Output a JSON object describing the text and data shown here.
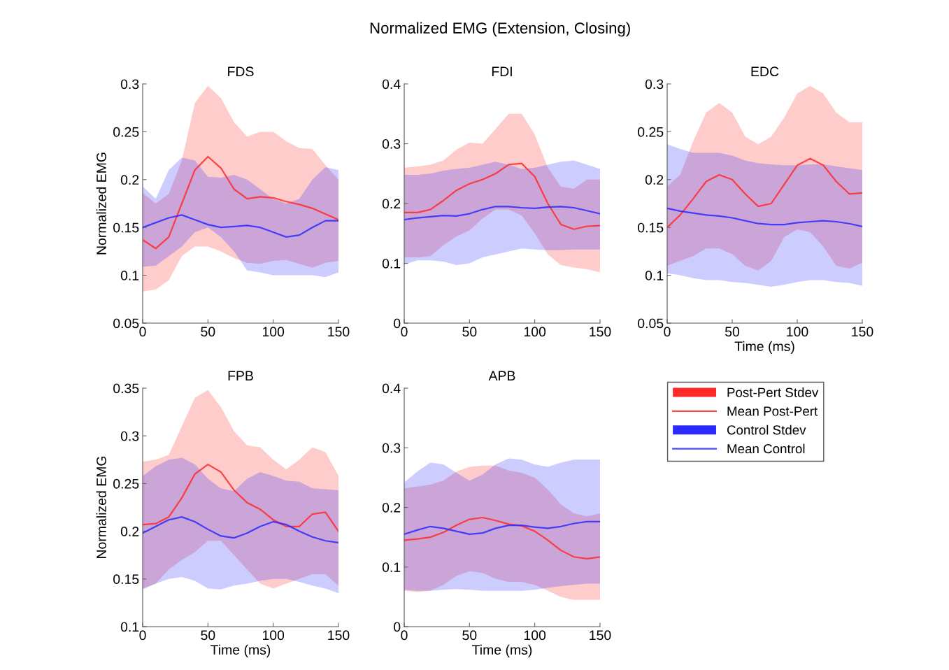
{
  "chart_data": [
    {
      "type": "line",
      "title": "FDS",
      "ylabel": "Normalized EMG",
      "annotations": [
        "Normalized EMG (Extension, Closing)"
      ],
      "x": [
        0,
        10,
        20,
        30,
        40,
        50,
        60,
        70,
        80,
        90,
        100,
        110,
        120,
        130,
        140,
        150
      ],
      "xlim": [
        0,
        150
      ],
      "xticks": [
        0,
        50,
        100,
        150
      ],
      "ylim": [
        0.05,
        0.3
      ],
      "yticks": [
        0.05,
        0.1,
        0.15,
        0.2,
        0.25,
        0.3
      ],
      "grid": false,
      "legend": false,
      "series": [
        {
          "color": "#ff2a2a",
          "values": [
            0.137,
            0.128,
            0.14,
            0.175,
            0.21,
            0.224,
            0.212,
            0.19,
            0.18,
            0.182,
            0.181,
            0.177,
            0.174,
            0.17,
            0.164,
            0.158
          ],
          "lower": [
            0.083,
            0.085,
            0.095,
            0.12,
            0.13,
            0.13,
            0.125,
            0.118,
            0.113,
            0.112,
            0.115,
            0.116,
            0.112,
            0.108,
            0.113,
            0.115
          ],
          "upper": [
            0.186,
            0.175,
            0.185,
            0.22,
            0.28,
            0.298,
            0.285,
            0.26,
            0.245,
            0.25,
            0.25,
            0.24,
            0.233,
            0.232,
            0.215,
            0.2
          ]
        },
        {
          "color": "#2a2aff",
          "values": [
            0.15,
            0.155,
            0.16,
            0.163,
            0.158,
            0.153,
            0.15,
            0.151,
            0.152,
            0.15,
            0.145,
            0.14,
            0.142,
            0.15,
            0.157,
            0.157
          ],
          "lower": [
            0.109,
            0.11,
            0.12,
            0.13,
            0.145,
            0.15,
            0.14,
            0.125,
            0.105,
            0.103,
            0.1,
            0.1,
            0.1,
            0.1,
            0.098,
            0.103
          ],
          "upper": [
            0.193,
            0.18,
            0.21,
            0.223,
            0.22,
            0.203,
            0.202,
            0.205,
            0.2,
            0.19,
            0.18,
            0.175,
            0.18,
            0.2,
            0.213,
            0.21
          ]
        }
      ]
    },
    {
      "type": "line",
      "title": "FDI",
      "x": [
        0,
        10,
        20,
        30,
        40,
        50,
        60,
        70,
        80,
        90,
        100,
        110,
        120,
        130,
        140,
        150
      ],
      "xlim": [
        0,
        150
      ],
      "xticks": [
        0,
        50,
        100,
        150
      ],
      "ylim": [
        0,
        0.4
      ],
      "yticks": [
        0,
        0.1,
        0.2,
        0.3,
        0.4
      ],
      "grid": false,
      "legend": false,
      "series": [
        {
          "color": "#ff2a2a",
          "values": [
            0.185,
            0.185,
            0.19,
            0.205,
            0.222,
            0.233,
            0.24,
            0.25,
            0.265,
            0.267,
            0.245,
            0.2,
            0.165,
            0.157,
            0.162,
            0.163
          ],
          "lower": [
            0.11,
            0.11,
            0.112,
            0.13,
            0.145,
            0.155,
            0.175,
            0.19,
            0.19,
            0.18,
            0.15,
            0.115,
            0.097,
            0.093,
            0.09,
            0.085
          ],
          "upper": [
            0.26,
            0.262,
            0.265,
            0.272,
            0.29,
            0.302,
            0.3,
            0.325,
            0.35,
            0.35,
            0.315,
            0.26,
            0.228,
            0.225,
            0.24,
            0.24
          ]
        },
        {
          "color": "#2a2aff",
          "values": [
            0.173,
            0.176,
            0.178,
            0.18,
            0.179,
            0.183,
            0.19,
            0.195,
            0.195,
            0.193,
            0.192,
            0.194,
            0.195,
            0.193,
            0.188,
            0.183
          ],
          "lower": [
            0.098,
            0.105,
            0.105,
            0.103,
            0.097,
            0.1,
            0.11,
            0.115,
            0.12,
            0.125,
            0.123,
            0.122,
            0.122,
            0.123,
            0.123,
            0.123
          ],
          "upper": [
            0.248,
            0.248,
            0.25,
            0.255,
            0.258,
            0.26,
            0.265,
            0.27,
            0.265,
            0.258,
            0.26,
            0.265,
            0.27,
            0.272,
            0.265,
            0.258
          ]
        }
      ]
    },
    {
      "type": "line",
      "title": "EDC",
      "xlabel": "Time (ms)",
      "x": [
        0,
        10,
        20,
        30,
        40,
        50,
        60,
        70,
        80,
        90,
        100,
        110,
        120,
        130,
        140,
        150
      ],
      "xlim": [
        0,
        150
      ],
      "xticks": [
        0,
        50,
        100,
        150
      ],
      "ylim": [
        0.05,
        0.3
      ],
      "yticks": [
        0.05,
        0.1,
        0.15,
        0.2,
        0.25,
        0.3
      ],
      "grid": false,
      "legend": false,
      "series": [
        {
          "color": "#ff2a2a",
          "values": [
            0.15,
            0.163,
            0.18,
            0.198,
            0.205,
            0.2,
            0.185,
            0.172,
            0.175,
            0.195,
            0.215,
            0.222,
            0.215,
            0.198,
            0.185,
            0.186
          ],
          "lower": [
            0.11,
            0.115,
            0.12,
            0.128,
            0.128,
            0.122,
            0.11,
            0.105,
            0.115,
            0.14,
            0.148,
            0.145,
            0.13,
            0.11,
            0.107,
            0.113
          ],
          "upper": [
            0.193,
            0.205,
            0.24,
            0.27,
            0.28,
            0.27,
            0.245,
            0.237,
            0.245,
            0.265,
            0.29,
            0.298,
            0.29,
            0.27,
            0.26,
            0.26
          ]
        },
        {
          "color": "#2a2aff",
          "values": [
            0.17,
            0.167,
            0.165,
            0.163,
            0.162,
            0.16,
            0.157,
            0.154,
            0.153,
            0.153,
            0.155,
            0.156,
            0.157,
            0.156,
            0.154,
            0.151
          ],
          "lower": [
            0.102,
            0.1,
            0.097,
            0.095,
            0.095,
            0.093,
            0.092,
            0.09,
            0.088,
            0.09,
            0.093,
            0.095,
            0.095,
            0.093,
            0.092,
            0.089
          ],
          "upper": [
            0.237,
            0.232,
            0.228,
            0.228,
            0.228,
            0.225,
            0.22,
            0.217,
            0.216,
            0.215,
            0.215,
            0.216,
            0.216,
            0.214,
            0.212,
            0.21
          ]
        }
      ]
    },
    {
      "type": "line",
      "title": "FPB",
      "xlabel": "Time (ms)",
      "ylabel": "Normalized EMG",
      "x": [
        0,
        10,
        20,
        30,
        40,
        50,
        60,
        70,
        80,
        90,
        100,
        110,
        120,
        130,
        140,
        150
      ],
      "xlim": [
        0,
        150
      ],
      "xticks": [
        0,
        50,
        100,
        150
      ],
      "ylim": [
        0.1,
        0.35
      ],
      "yticks": [
        0.1,
        0.15,
        0.2,
        0.25,
        0.3,
        0.35
      ],
      "grid": false,
      "legend": false,
      "series": [
        {
          "color": "#ff2a2a",
          "values": [
            0.207,
            0.208,
            0.215,
            0.235,
            0.26,
            0.27,
            0.262,
            0.243,
            0.23,
            0.223,
            0.212,
            0.205,
            0.205,
            0.218,
            0.22,
            0.2
          ],
          "lower": [
            0.14,
            0.145,
            0.16,
            0.17,
            0.178,
            0.19,
            0.19,
            0.175,
            0.16,
            0.145,
            0.14,
            0.145,
            0.15,
            0.155,
            0.155,
            0.143
          ],
          "upper": [
            0.273,
            0.275,
            0.28,
            0.31,
            0.34,
            0.348,
            0.33,
            0.305,
            0.29,
            0.288,
            0.275,
            0.265,
            0.275,
            0.288,
            0.283,
            0.258
          ]
        },
        {
          "color": "#2a2aff",
          "values": [
            0.198,
            0.205,
            0.212,
            0.215,
            0.21,
            0.202,
            0.195,
            0.193,
            0.198,
            0.205,
            0.21,
            0.207,
            0.2,
            0.194,
            0.19,
            0.188
          ],
          "lower": [
            0.139,
            0.145,
            0.15,
            0.152,
            0.148,
            0.14,
            0.139,
            0.143,
            0.145,
            0.148,
            0.15,
            0.15,
            0.147,
            0.143,
            0.14,
            0.135
          ],
          "upper": [
            0.258,
            0.268,
            0.275,
            0.277,
            0.27,
            0.255,
            0.245,
            0.242,
            0.255,
            0.262,
            0.258,
            0.253,
            0.252,
            0.245,
            0.244,
            0.243
          ]
        }
      ]
    },
    {
      "type": "line",
      "title": "APB",
      "xlabel": "Time (ms)",
      "annotations": [
        "Post-Pert Stdev",
        "Control Stdev"
      ],
      "x": [
        0,
        10,
        20,
        30,
        40,
        50,
        60,
        70,
        80,
        90,
        100,
        110,
        120,
        130,
        140,
        150
      ],
      "xlim": [
        0,
        150
      ],
      "xticks": [
        0,
        50,
        100,
        150
      ],
      "ylim": [
        0,
        0.4
      ],
      "yticks": [
        0,
        0.1,
        0.2,
        0.3,
        0.4
      ],
      "grid": false,
      "legend": "right",
      "series": [
        {
          "name": "Mean Post-Pert",
          "color": "#ff2a2a",
          "values": [
            0.145,
            0.147,
            0.15,
            0.158,
            0.17,
            0.18,
            0.183,
            0.178,
            0.172,
            0.169,
            0.16,
            0.145,
            0.128,
            0.117,
            0.114,
            0.117
          ],
          "lower": [
            0.06,
            0.058,
            0.06,
            0.07,
            0.085,
            0.093,
            0.09,
            0.08,
            0.075,
            0.075,
            0.07,
            0.06,
            0.05,
            0.045,
            0.045,
            0.045
          ],
          "upper": [
            0.232,
            0.235,
            0.238,
            0.245,
            0.26,
            0.268,
            0.27,
            0.27,
            0.262,
            0.258,
            0.25,
            0.23,
            0.205,
            0.19,
            0.185,
            0.19
          ]
        },
        {
          "name": "Mean Control",
          "color": "#2a2aff",
          "values": [
            0.155,
            0.162,
            0.168,
            0.165,
            0.16,
            0.155,
            0.157,
            0.165,
            0.17,
            0.17,
            0.167,
            0.165,
            0.168,
            0.173,
            0.176,
            0.176
          ],
          "lower": [
            0.062,
            0.06,
            0.06,
            0.062,
            0.063,
            0.062,
            0.06,
            0.06,
            0.06,
            0.06,
            0.062,
            0.065,
            0.068,
            0.07,
            0.072,
            0.072
          ],
          "upper": [
            0.242,
            0.26,
            0.275,
            0.272,
            0.258,
            0.245,
            0.255,
            0.272,
            0.282,
            0.28,
            0.272,
            0.268,
            0.275,
            0.28,
            0.28,
            0.28
          ]
        }
      ]
    }
  ]
}
